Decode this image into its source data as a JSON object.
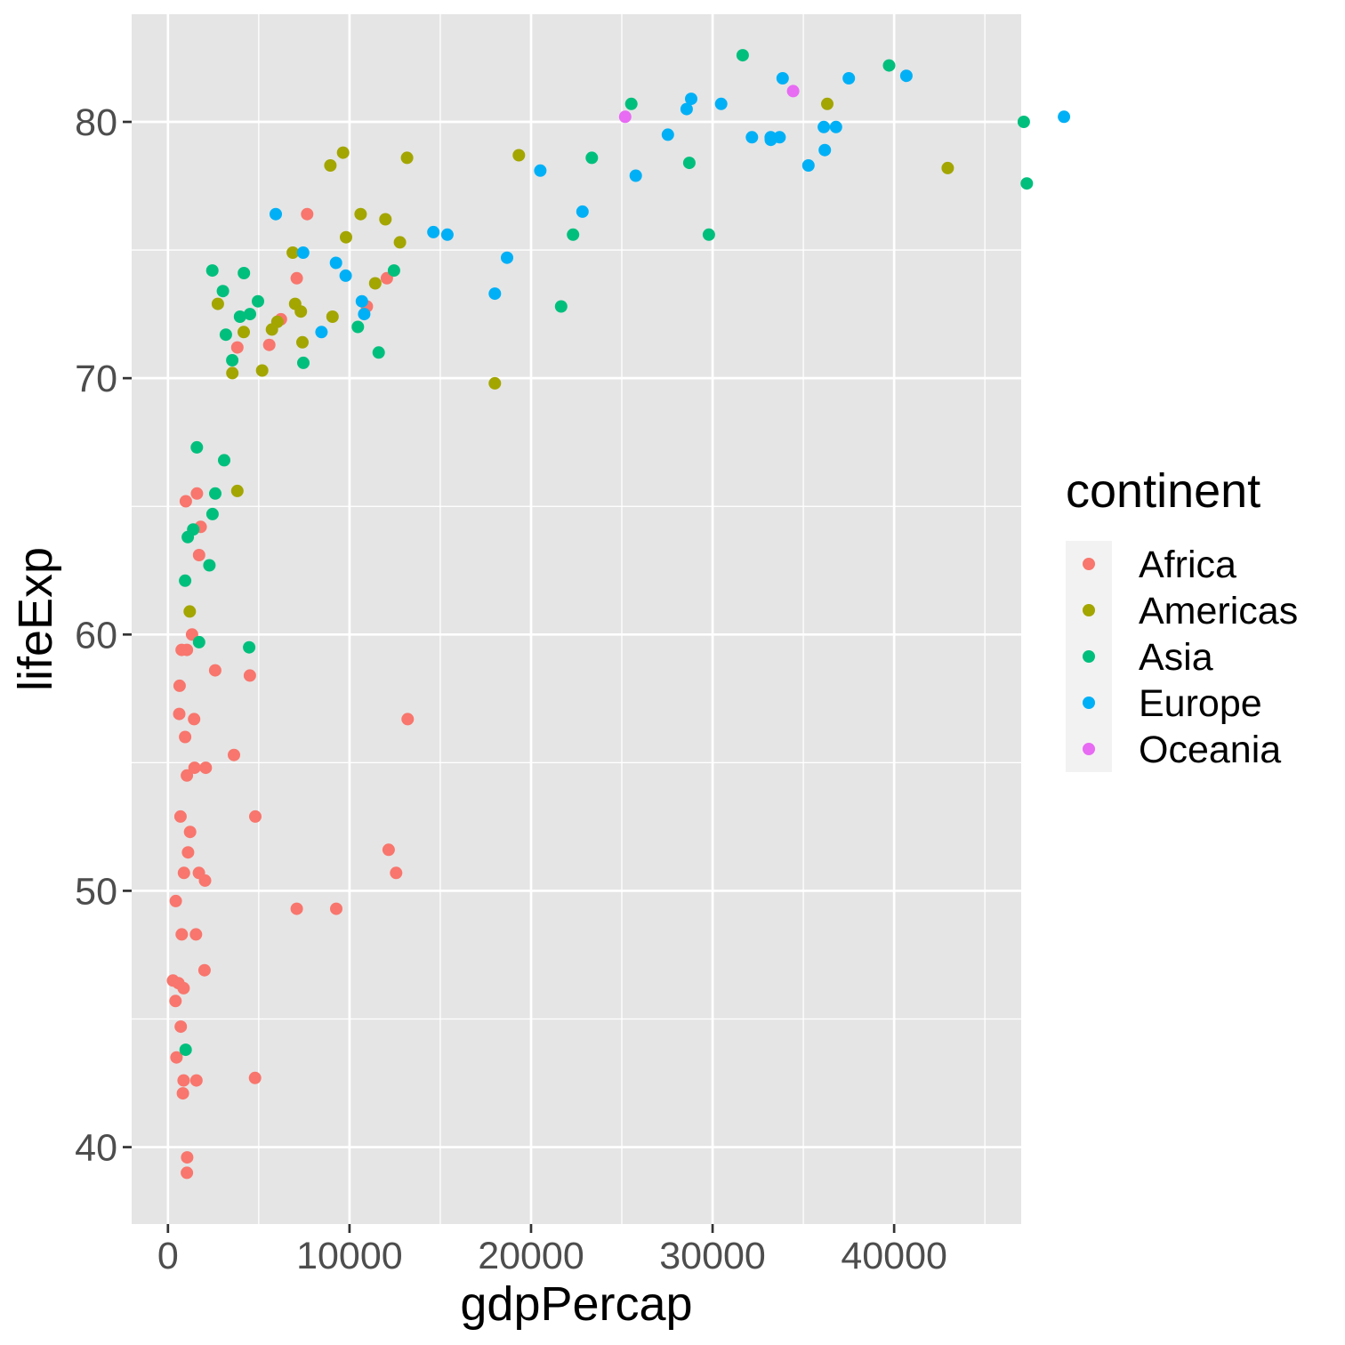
{
  "chart_data": {
    "type": "scatter",
    "xlabel": "gdpPercap",
    "ylabel": "lifeExp",
    "xlim": [
      -2000,
      47000
    ],
    "ylim": [
      37,
      84.2
    ],
    "x_major_ticks": [
      0,
      10000,
      20000,
      30000,
      40000
    ],
    "x_tick_labels": [
      "0",
      "10000",
      "20000",
      "30000",
      "40000"
    ],
    "x_minor_ticks": [
      5000,
      15000,
      25000,
      35000,
      45000
    ],
    "y_major_ticks": [
      40,
      50,
      60,
      70,
      80
    ],
    "y_tick_labels": [
      "40",
      "50",
      "60",
      "70",
      "80"
    ],
    "y_minor_ticks": [
      45,
      55,
      65,
      75
    ],
    "grid": true,
    "legend": {
      "title": "continent",
      "placement": "right"
    },
    "series": [
      {
        "name": "Africa",
        "color": "#F8766D",
        "points": [
          [
            6223,
            72.3
          ],
          [
            4797,
            42.7
          ],
          [
            1441,
            56.7
          ],
          [
            12570,
            50.7
          ],
          [
            1217,
            52.3
          ],
          [
            430,
            49.6
          ],
          [
            2042,
            50.4
          ],
          [
            706,
            44.7
          ],
          [
            1704,
            50.7
          ],
          [
            986,
            65.2
          ],
          [
            277,
            46.5
          ],
          [
            3633,
            55.3
          ],
          [
            1544,
            48.3
          ],
          [
            2082,
            54.8
          ],
          [
            5581,
            71.3
          ],
          [
            12154,
            51.6
          ],
          [
            641,
            58.0
          ],
          [
            691,
            52.9
          ],
          [
            13206,
            56.7
          ],
          [
            752,
            59.4
          ],
          [
            1328,
            60.0
          ],
          [
            943,
            56.0
          ],
          [
            579,
            46.4
          ],
          [
            1463,
            54.8
          ],
          [
            1569,
            42.6
          ],
          [
            414,
            45.7
          ],
          [
            12057,
            73.9
          ],
          [
            1045,
            59.4
          ],
          [
            759,
            48.3
          ],
          [
            1042,
            54.5
          ],
          [
            1803,
            64.2
          ],
          [
            10957,
            72.8
          ],
          [
            3820,
            71.2
          ],
          [
            824,
            42.1
          ],
          [
            4811,
            52.9
          ],
          [
            620,
            56.9
          ],
          [
            2014,
            46.9
          ],
          [
            7670,
            76.4
          ],
          [
            863,
            46.2
          ],
          [
            1598,
            65.5
          ],
          [
            1713,
            63.1
          ],
          [
            862,
            42.6
          ],
          [
            7093,
            49.3
          ],
          [
            2602,
            58.6
          ],
          [
            1056,
            39.6
          ],
          [
            4513,
            58.4
          ],
          [
            7092,
            73.9
          ],
          [
            1107,
            51.5
          ],
          [
            882,
            50.7
          ],
          [
            9270,
            49.3
          ],
          [
            1043,
            39.0
          ],
          [
            470,
            43.5
          ]
        ]
      },
      {
        "name": "Americas",
        "color": "#A3A500",
        "points": [
          [
            12779,
            75.3
          ],
          [
            3822,
            65.6
          ],
          [
            9066,
            72.4
          ],
          [
            36319,
            80.7
          ],
          [
            13172,
            78.6
          ],
          [
            7007,
            72.9
          ],
          [
            9645,
            78.8
          ],
          [
            8948,
            78.3
          ],
          [
            6025,
            72.2
          ],
          [
            6873,
            74.9
          ],
          [
            5728,
            71.9
          ],
          [
            5186,
            70.3
          ],
          [
            1202,
            60.9
          ],
          [
            3548,
            70.2
          ],
          [
            7321,
            72.6
          ],
          [
            11978,
            76.2
          ],
          [
            2749,
            72.9
          ],
          [
            9809,
            75.5
          ],
          [
            4173,
            71.8
          ],
          [
            7409,
            71.4
          ],
          [
            19329,
            78.7
          ],
          [
            18009,
            69.8
          ],
          [
            42952,
            78.2
          ],
          [
            10611,
            76.4
          ],
          [
            11416,
            73.7
          ]
        ]
      },
      {
        "name": "Asia",
        "color": "#00BF7D",
        "points": [
          [
            975,
            43.8
          ],
          [
            29796,
            75.6
          ],
          [
            1391,
            64.1
          ],
          [
            1714,
            59.7
          ],
          [
            4959,
            73.0
          ],
          [
            39725,
            82.2
          ],
          [
            2452,
            64.7
          ],
          [
            3541,
            70.7
          ],
          [
            11606,
            71.0
          ],
          [
            4471,
            59.5
          ],
          [
            25523,
            80.7
          ],
          [
            31656,
            82.6
          ],
          [
            4519,
            72.5
          ],
          [
            1593,
            67.3
          ],
          [
            23348,
            78.6
          ],
          [
            47307,
            77.6
          ],
          [
            10461,
            72.0
          ],
          [
            12452,
            74.2
          ],
          [
            3096,
            66.8
          ],
          [
            945,
            62.1
          ],
          [
            1091,
            63.8
          ],
          [
            22316,
            75.6
          ],
          [
            2606,
            65.5
          ],
          [
            3190,
            71.7
          ],
          [
            21655,
            72.8
          ],
          [
            47143,
            80.0
          ],
          [
            3970,
            72.4
          ],
          [
            4185,
            74.1
          ],
          [
            28718,
            78.4
          ],
          [
            7458,
            70.6
          ],
          [
            2442,
            74.2
          ],
          [
            3026,
            73.4
          ],
          [
            2281,
            62.7
          ]
        ]
      },
      {
        "name": "Europe",
        "color": "#00B0F6",
        "points": [
          [
            5937,
            76.4
          ],
          [
            36126,
            79.8
          ],
          [
            33693,
            79.4
          ],
          [
            7446,
            74.9
          ],
          [
            10681,
            73.0
          ],
          [
            14619,
            75.7
          ],
          [
            22833,
            76.5
          ],
          [
            35278,
            78.3
          ],
          [
            33207,
            79.3
          ],
          [
            30470,
            80.7
          ],
          [
            32170,
            79.4
          ],
          [
            27538,
            79.5
          ],
          [
            18008,
            73.3
          ],
          [
            36181,
            78.9
          ],
          [
            40676,
            81.8
          ],
          [
            28570,
            80.5
          ],
          [
            9254,
            74.5
          ],
          [
            36798,
            79.8
          ],
          [
            49357,
            80.2
          ],
          [
            15390,
            75.6
          ],
          [
            20510,
            78.1
          ],
          [
            10808,
            72.5
          ],
          [
            9787,
            74.0
          ],
          [
            18678,
            74.7
          ],
          [
            25768,
            77.9
          ],
          [
            28822,
            80.9
          ],
          [
            33860,
            81.7
          ],
          [
            37506,
            81.7
          ],
          [
            8458,
            71.8
          ],
          [
            33203,
            79.4
          ]
        ]
      },
      {
        "name": "Oceania",
        "color": "#E76BF3",
        "points": [
          [
            34435,
            81.2
          ],
          [
            25185,
            80.2
          ]
        ]
      }
    ]
  }
}
